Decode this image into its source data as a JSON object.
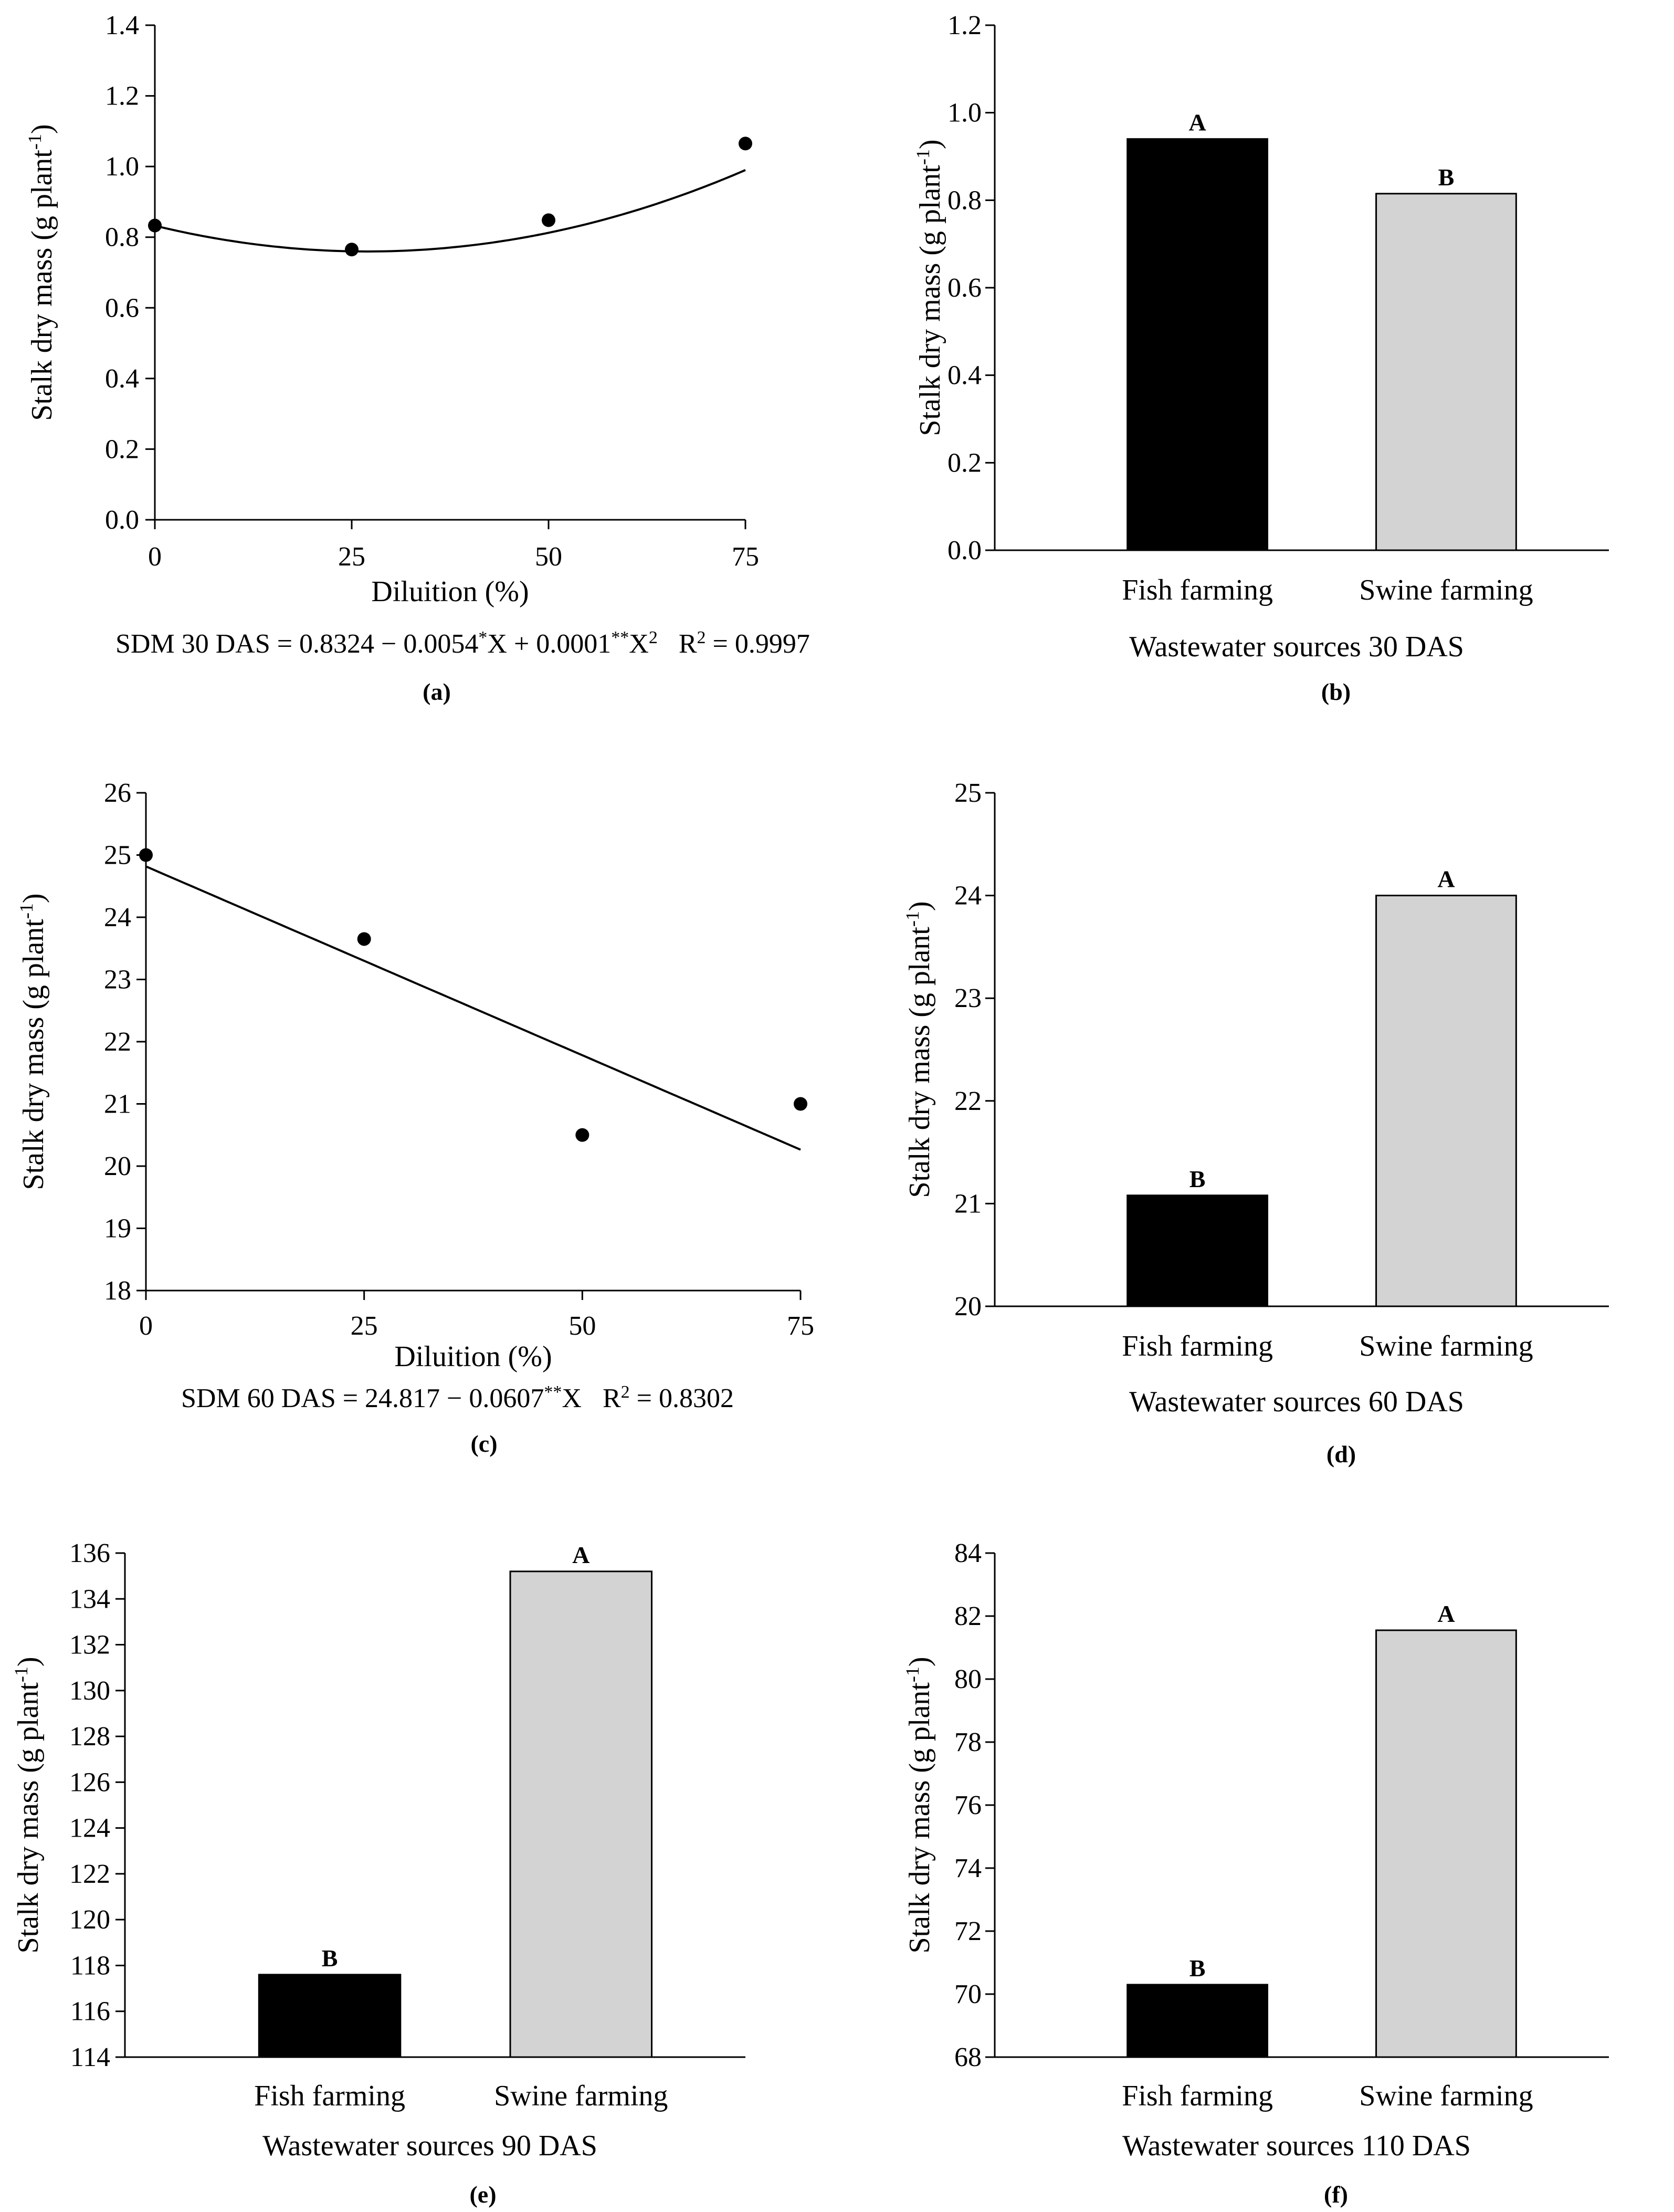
{
  "figure": {
    "panels": [
      {
        "id": "a",
        "letter": "(a)",
        "equation": {
          "lhs": "SDM 30 DAS = 0.8324 − 0.0054",
          "s1": "*",
          "mid": "X + 0.0001",
          "s2": "**",
          "x": "X",
          "x2": "2",
          "r2": "R",
          "r2sup": "2",
          "r2val": " = 0.9997"
        }
      },
      {
        "id": "b",
        "letter": "(b)"
      },
      {
        "id": "c",
        "letter": "(c)",
        "equation": {
          "lhs": "SDM 60 DAS = 24.817  −  0.0607",
          "s1": "**",
          "mid": "X",
          "r2": "R",
          "r2sup": "2",
          "r2val": " = 0.8302"
        }
      },
      {
        "id": "d",
        "letter": "(d)"
      },
      {
        "id": "e",
        "letter": "(e)"
      },
      {
        "id": "f",
        "letter": "(f)"
      }
    ]
  },
  "colors": {
    "fish": "#000000",
    "swine": "#d3d3d3"
  },
  "chart_data": [
    {
      "id": "a",
      "type": "scatter",
      "xlabel": "Diluition (%)",
      "ylabel": "Stalk dry mass (g plant",
      "ylabel_sup": "-1",
      "ylabel_close": ")",
      "x_ticks": [
        "0",
        "25",
        "50",
        "75"
      ],
      "y_ticks": [
        "0.0",
        "0.2",
        "0.4",
        "0.6",
        "0.8",
        "1.0",
        "1.2",
        "1.4"
      ],
      "xlim": [
        0,
        75
      ],
      "ylim": [
        0,
        1.4
      ],
      "points": [
        {
          "x": 0,
          "y": 0.833
        },
        {
          "x": 25,
          "y": 0.765
        },
        {
          "x": 50,
          "y": 0.848
        },
        {
          "x": 75,
          "y": 1.065
        }
      ],
      "fit": {
        "kind": "quadratic",
        "coef": [
          0.8324,
          -0.0054,
          0.0001
        ]
      }
    },
    {
      "id": "b",
      "type": "bar",
      "xlabel": "Wastewater sources 30 DAS",
      "ylabel": "Stalk dry mass (g plant",
      "ylabel_sup": "-1",
      "ylabel_close": ")",
      "categories": [
        "Fish farming",
        "Swine farming"
      ],
      "values": [
        0.94,
        0.815
      ],
      "letters": [
        "A",
        "B"
      ],
      "y_ticks": [
        "0.0",
        "0.2",
        "0.4",
        "0.6",
        "0.8",
        "1.0",
        "1.2"
      ],
      "ylim": [
        0,
        1.2
      ]
    },
    {
      "id": "c",
      "type": "scatter",
      "xlabel": "Diluition (%)",
      "ylabel": "Stalk dry mass (g plant",
      "ylabel_sup": "-1",
      "ylabel_close": ")",
      "x_ticks": [
        "0",
        "25",
        "50",
        "75"
      ],
      "y_ticks": [
        "18",
        "19",
        "20",
        "21",
        "22",
        "23",
        "24",
        "25",
        "26"
      ],
      "xlim": [
        0,
        75
      ],
      "ylim": [
        18,
        26
      ],
      "points": [
        {
          "x": 0,
          "y": 25.0
        },
        {
          "x": 25,
          "y": 23.65
        },
        {
          "x": 50,
          "y": 20.5
        },
        {
          "x": 75,
          "y": 21.0
        }
      ],
      "fit": {
        "kind": "linear",
        "coef": [
          24.817,
          -0.0607
        ]
      }
    },
    {
      "id": "d",
      "type": "bar",
      "xlabel": "Wastewater sources 60 DAS",
      "ylabel": "Stalk dry mass (g plant",
      "ylabel_sup": "-1",
      "ylabel_close": ")",
      "categories": [
        "Fish farming",
        "Swine farming"
      ],
      "values": [
        21.08,
        24.0
      ],
      "letters": [
        "B",
        "A"
      ],
      "y_ticks": [
        "20",
        "21",
        "22",
        "23",
        "24",
        "25"
      ],
      "ylim": [
        20,
        25
      ]
    },
    {
      "id": "e",
      "type": "bar",
      "xlabel": "Wastewater sources 90 DAS",
      "ylabel": "Stalk dry mass (g plant",
      "ylabel_sup": "-1",
      "ylabel_close": ")",
      "categories": [
        "Fish farming",
        "Swine farming"
      ],
      "values": [
        117.6,
        135.2
      ],
      "letters": [
        "B",
        "A"
      ],
      "y_ticks": [
        "114",
        "116",
        "118",
        "120",
        "122",
        "124",
        "126",
        "128",
        "130",
        "132",
        "134",
        "136"
      ],
      "ylim": [
        114,
        136
      ]
    },
    {
      "id": "f",
      "type": "bar",
      "xlabel": "Wastewater sources 110 DAS",
      "ylabel": "Stalk dry mass (g plant",
      "ylabel_sup": "-1",
      "ylabel_close": ")",
      "categories": [
        "Fish farming",
        "Swine farming"
      ],
      "values": [
        70.3,
        81.55
      ],
      "letters": [
        "B",
        "A"
      ],
      "y_ticks": [
        "68",
        "70",
        "72",
        "74",
        "76",
        "78",
        "80",
        "82",
        "84"
      ],
      "ylim": [
        68,
        84
      ]
    }
  ]
}
